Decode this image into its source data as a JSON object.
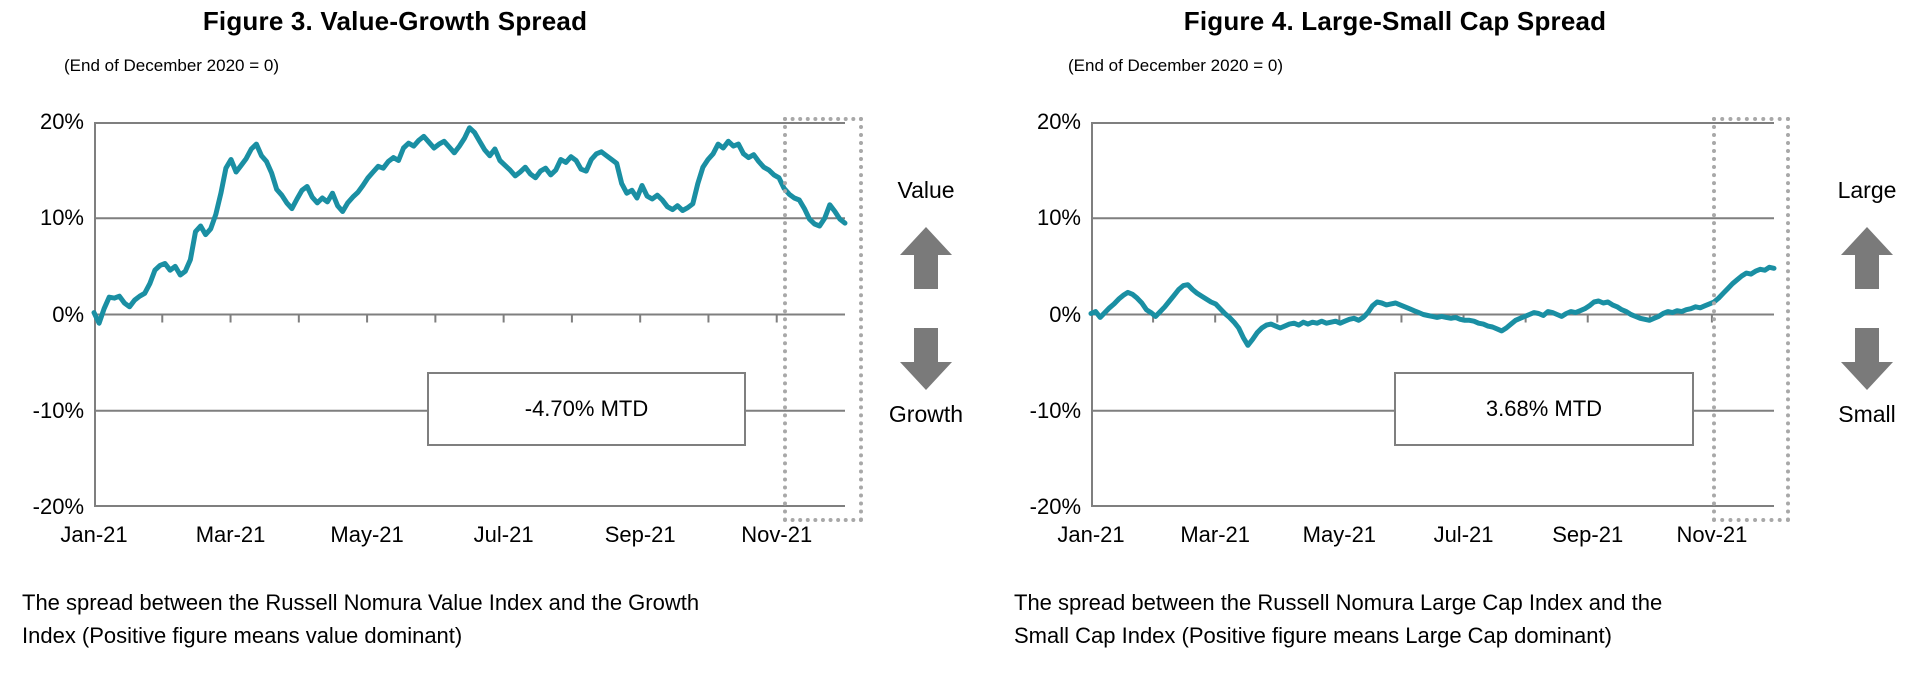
{
  "page": {
    "background": "#ffffff"
  },
  "chart_data": [
    {
      "type": "line",
      "title": "Figure 3. Value-Growth Spread",
      "subtitle": "(End of December 2020 = 0)",
      "series_name": "Russell Nomura Value Index minus Growth Index cumulative spread (%)",
      "caption": "The spread between the Russell Nomura Value Index and the Growth\nIndex (Positive figure means value dominant)",
      "mtd_label": "-4.70% MTD",
      "up_label": "Value",
      "down_label": "Growth",
      "line_color": "#1a8fa3",
      "grid_color": "#7f7f7f",
      "arrow_color": "#7a7a7a",
      "highlight_box_color": "#a8a8a8",
      "unit": "percent",
      "ylim": [
        -20,
        20
      ],
      "yticks": [
        20,
        10,
        0,
        -10,
        -20
      ],
      "ytick_labels": [
        "20%",
        "10%",
        "0%",
        "-10%",
        "-20%"
      ],
      "xtick_labels": [
        "Jan-21",
        "Mar-21",
        "May-21",
        "Jul-21",
        "Sep-21",
        "Nov-21"
      ],
      "x_months": 11,
      "highlighted_final_month": "Nov-21",
      "values": [
        0.2,
        -0.9,
        0.6,
        1.8,
        1.7,
        1.9,
        1.2,
        0.8,
        1.5,
        1.9,
        2.2,
        3.2,
        4.6,
        5.1,
        5.3,
        4.6,
        5.0,
        4.1,
        4.5,
        5.7,
        8.6,
        9.2,
        8.3,
        8.9,
        10.4,
        12.6,
        15.2,
        16.1,
        14.8,
        15.5,
        16.2,
        17.2,
        17.7,
        16.5,
        15.9,
        14.7,
        13.0,
        12.4,
        11.6,
        11.0,
        12.0,
        12.9,
        13.3,
        12.2,
        11.6,
        12.1,
        11.7,
        12.6,
        11.3,
        10.7,
        11.6,
        12.2,
        12.7,
        13.4,
        14.2,
        14.8,
        15.4,
        15.2,
        15.9,
        16.3,
        16.0,
        17.3,
        17.8,
        17.5,
        18.1,
        18.5,
        17.9,
        17.3,
        17.7,
        18.0,
        17.4,
        16.8,
        17.5,
        18.3,
        19.4,
        18.9,
        18.0,
        17.1,
        16.5,
        17.2,
        16.0,
        15.5,
        15.0,
        14.4,
        14.8,
        15.3,
        14.6,
        14.2,
        14.9,
        15.2,
        14.5,
        15.0,
        16.1,
        15.8,
        16.4,
        16.0,
        15.1,
        14.9,
        16.1,
        16.7,
        16.9,
        16.5,
        16.1,
        15.7,
        13.6,
        12.6,
        12.9,
        12.1,
        13.4,
        12.3,
        12.0,
        12.4,
        11.9,
        11.2,
        10.9,
        11.3,
        10.8,
        11.1,
        11.5,
        13.6,
        15.3,
        16.1,
        16.7,
        17.7,
        17.3,
        18.0,
        17.5,
        17.7,
        16.7,
        16.3,
        16.6,
        15.9,
        15.3,
        15.0,
        14.5,
        14.2,
        13.1,
        12.5,
        12.1,
        11.9,
        11.0,
        9.9,
        9.4,
        9.2,
        10.0,
        11.4,
        10.7,
        9.9,
        9.5
      ]
    },
    {
      "type": "line",
      "title": "Figure 4. Large-Small Cap Spread",
      "subtitle": "(End of December 2020 = 0)",
      "series_name": "Russell Nomura Large Cap Index minus Small Cap Index cumulative spread (%)",
      "caption": "The spread between the Russell Nomura Large Cap Index and the\nSmall Cap Index (Positive figure means Large Cap dominant)",
      "mtd_label": "3.68% MTD",
      "up_label": "Large",
      "down_label": "Small",
      "line_color": "#1a8fa3",
      "grid_color": "#7f7f7f",
      "arrow_color": "#7a7a7a",
      "highlight_box_color": "#a8a8a8",
      "unit": "percent",
      "ylim": [
        -20,
        20
      ],
      "yticks": [
        20,
        10,
        0,
        -10,
        -20
      ],
      "ytick_labels": [
        "20%",
        "10%",
        "0%",
        "-10%",
        "-20%"
      ],
      "xtick_labels": [
        "Jan-21",
        "Mar-21",
        "May-21",
        "Jul-21",
        "Sep-21",
        "Nov-21"
      ],
      "x_months": 11,
      "highlighted_final_month": "Nov-21",
      "values": [
        0.1,
        0.3,
        -0.3,
        0.2,
        0.7,
        1.1,
        1.6,
        2.0,
        2.3,
        2.1,
        1.7,
        1.2,
        0.5,
        0.2,
        -0.2,
        0.3,
        0.8,
        1.4,
        2.0,
        2.6,
        3.0,
        3.1,
        2.6,
        2.2,
        1.9,
        1.6,
        1.3,
        1.1,
        0.6,
        0.1,
        -0.3,
        -0.8,
        -1.4,
        -2.4,
        -3.2,
        -2.6,
        -1.9,
        -1.4,
        -1.1,
        -1.0,
        -1.2,
        -1.4,
        -1.2,
        -1.0,
        -0.9,
        -1.1,
        -0.8,
        -1.0,
        -0.8,
        -0.9,
        -0.7,
        -0.9,
        -0.8,
        -0.7,
        -0.9,
        -0.7,
        -0.5,
        -0.4,
        -0.6,
        -0.3,
        0.2,
        0.9,
        1.3,
        1.2,
        1.0,
        1.1,
        1.2,
        1.0,
        0.8,
        0.6,
        0.4,
        0.2,
        0.0,
        -0.1,
        -0.2,
        -0.3,
        -0.2,
        -0.3,
        -0.4,
        -0.3,
        -0.5,
        -0.6,
        -0.6,
        -0.7,
        -0.9,
        -1.0,
        -1.2,
        -1.3,
        -1.5,
        -1.7,
        -1.4,
        -1.0,
        -0.6,
        -0.4,
        -0.2,
        0.0,
        0.2,
        0.1,
        -0.1,
        0.3,
        0.2,
        0.0,
        -0.2,
        0.1,
        0.3,
        0.2,
        0.4,
        0.6,
        0.9,
        1.3,
        1.4,
        1.2,
        1.3,
        1.0,
        0.8,
        0.5,
        0.3,
        0.0,
        -0.2,
        -0.4,
        -0.5,
        -0.6,
        -0.4,
        -0.2,
        0.1,
        0.3,
        0.2,
        0.4,
        0.3,
        0.5,
        0.6,
        0.8,
        0.7,
        0.9,
        1.1,
        1.3,
        1.7,
        2.2,
        2.7,
        3.2,
        3.6,
        4.0,
        4.3,
        4.2,
        4.5,
        4.7,
        4.6,
        4.9,
        4.8
      ]
    }
  ]
}
